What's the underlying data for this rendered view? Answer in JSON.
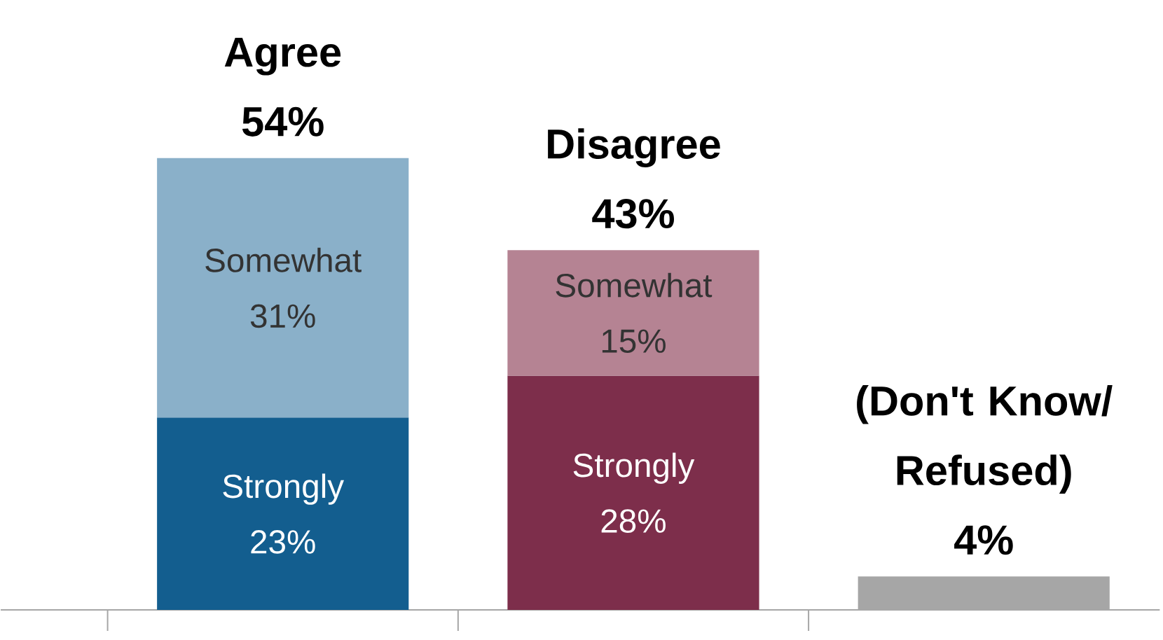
{
  "chart_data": {
    "type": "bar",
    "stacked": true,
    "categories": [
      "Agree",
      "Disagree",
      "(Don't Know/ Refused)"
    ],
    "totals": [
      "54%",
      "43%",
      "4%"
    ],
    "series": [
      {
        "name": "Strongly",
        "colors": [
          "#135e8f",
          "#7d2e4b",
          "#a6a6a6"
        ],
        "values": [
          23,
          28,
          4
        ],
        "value_labels": [
          "23%",
          "28%",
          null
        ]
      },
      {
        "name": "Somewhat",
        "colors": [
          "#8ab0c9",
          "#b58393",
          null
        ],
        "values": [
          31,
          15,
          null
        ],
        "value_labels": [
          "31%",
          "15%",
          null
        ]
      }
    ]
  }
}
